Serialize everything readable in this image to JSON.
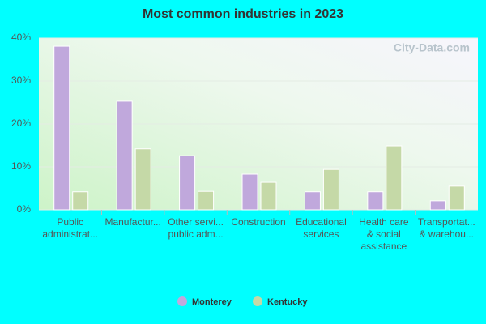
{
  "chart_data": {
    "type": "bar",
    "title": "Most common industries in 2023",
    "watermark": "City-Data.com",
    "categories": [
      "Public\nadministrat...",
      "Manufactur...",
      "Other servi...\npublic adm...",
      "Construction",
      "Educational\nservices",
      "Health care\n& social\nassistance",
      "Transportat...\n& warehou..."
    ],
    "series": [
      {
        "name": "Monterey",
        "color": "#c0a8dc",
        "values": [
          38.1,
          25.3,
          12.6,
          8.3,
          4.2,
          4.2,
          2.1
        ]
      },
      {
        "name": "Kentucky",
        "color": "#c5d9a7",
        "values": [
          4.2,
          14.2,
          4.3,
          6.4,
          9.4,
          14.9,
          5.5
        ]
      }
    ],
    "ylim": [
      0,
      40
    ],
    "yticks": [
      {
        "value": 0,
        "label": "0%"
      },
      {
        "value": 10,
        "label": "10%"
      },
      {
        "value": 20,
        "label": "20%"
      },
      {
        "value": 30,
        "label": "30%"
      },
      {
        "value": 40,
        "label": "40%"
      }
    ],
    "grid": true,
    "legend": "bottom"
  }
}
